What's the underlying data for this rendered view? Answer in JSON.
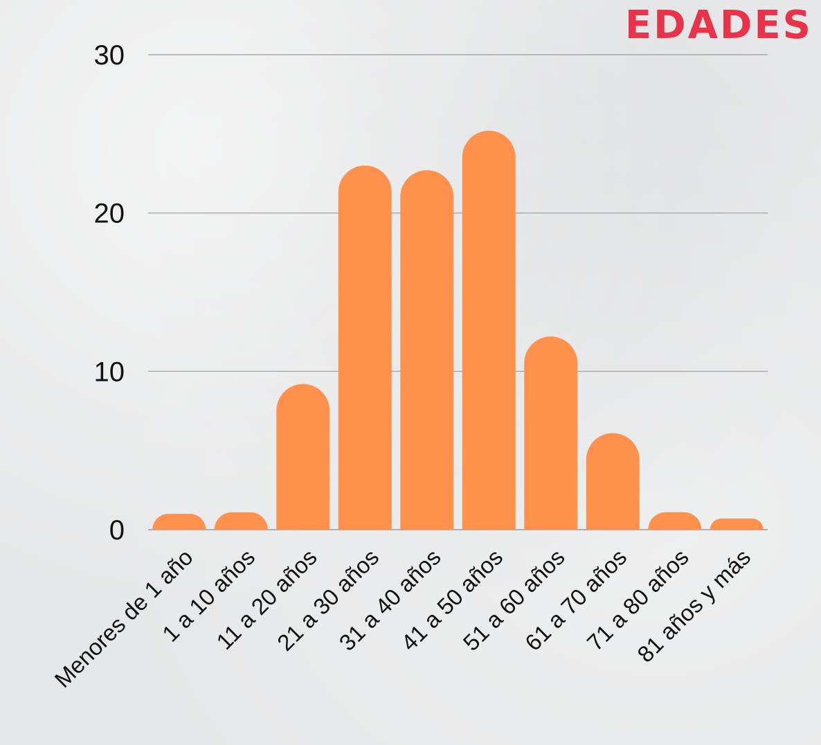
{
  "title": "EDADES",
  "colors": {
    "title": "#e8334a",
    "bar": "#ff914d",
    "grid": "#9a9a9a",
    "text": "#111111"
  },
  "chart_data": {
    "type": "bar",
    "title": "EDADES",
    "categories": [
      "Menores de 1 año",
      "1 a 10 años",
      "11 a 20 años",
      "21 a 30 años",
      "31 a 40 años",
      "41 a 50 años",
      "51 a 60 años",
      "61 a 70 años",
      "71 a 80 años",
      "81 años y más"
    ],
    "values": [
      1,
      1.1,
      9.2,
      23,
      22.7,
      25.2,
      12.2,
      6.1,
      1.1,
      0.7
    ],
    "ylim": [
      0,
      30
    ],
    "yticks": [
      "0",
      "10",
      "20",
      "30"
    ],
    "grid": true,
    "legend": "none"
  }
}
